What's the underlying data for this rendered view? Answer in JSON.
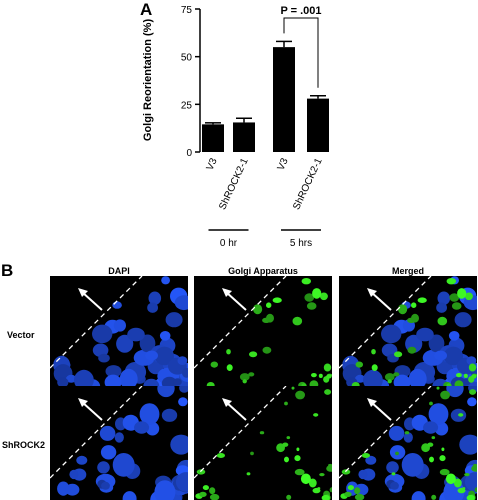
{
  "panel_a": {
    "letter": "A",
    "chart_data": {
      "type": "bar",
      "title": "",
      "ylabel": "Golgi Reorientation (%)",
      "xlabel": "",
      "ylim": [
        0,
        75
      ],
      "yticks": [
        "0",
        "25",
        "50",
        "75"
      ],
      "categories": [
        "V3",
        "ShROCK2-1",
        "V3",
        "ShROCK2-1"
      ],
      "values": [
        14.5,
        15.5,
        55,
        28
      ],
      "errors": [
        0.8,
        2.2,
        3,
        1.5
      ],
      "groups": [
        {
          "label": "0 hr",
          "members": [
            0,
            1
          ]
        },
        {
          "label": "5 hrs",
          "members": [
            2,
            3
          ]
        }
      ],
      "annotation": {
        "text": "P = .001",
        "between": [
          2,
          3
        ]
      },
      "bar_color": "#000000"
    }
  },
  "panel_b": {
    "letter": "B",
    "column_titles": [
      "DAPI",
      "Golgi Apparatus",
      "Merged"
    ],
    "row_labels": [
      "Vector",
      "ShROCK2"
    ]
  }
}
